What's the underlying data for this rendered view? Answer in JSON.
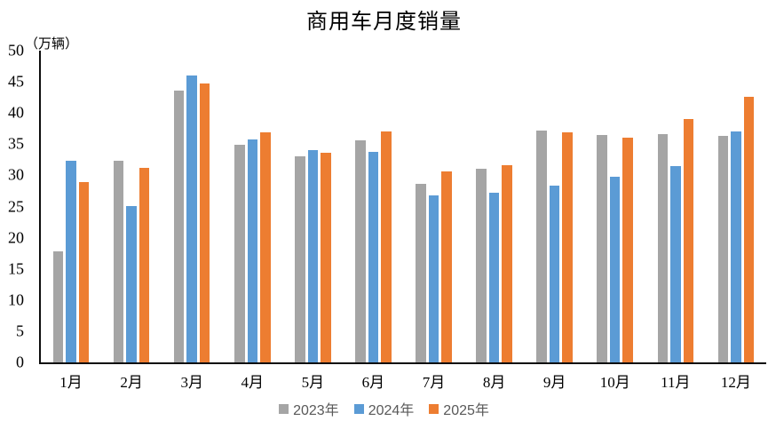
{
  "chart_data": {
    "type": "bar",
    "title": "商用车月度销量",
    "ylabel": "（万辆）",
    "xlabel": "",
    "categories": [
      "1月",
      "2月",
      "3月",
      "4月",
      "5月",
      "6月",
      "7月",
      "8月",
      "9月",
      "10月",
      "11月",
      "12月"
    ],
    "series": [
      {
        "name": "2023年",
        "color": "#A5A5A5",
        "values": [
          17.8,
          32.4,
          43.6,
          34.9,
          33.0,
          35.6,
          28.6,
          31.0,
          37.2,
          36.5,
          36.6,
          36.3
        ]
      },
      {
        "name": "2024年",
        "color": "#5B9BD5",
        "values": [
          32.3,
          25.1,
          46.0,
          35.8,
          34.1,
          33.8,
          26.8,
          27.2,
          28.4,
          29.8,
          31.5,
          37.0
        ]
      },
      {
        "name": "2025年",
        "color": "#ED7D31",
        "values": [
          28.9,
          31.2,
          44.7,
          36.9,
          33.6,
          37.0,
          30.6,
          31.6,
          36.9,
          36.1,
          39.1,
          42.6
        ]
      }
    ],
    "ylim": [
      0,
      50
    ],
    "ytick_step": 5,
    "grid": false,
    "legend_position": "bottom",
    "axis_color": "#0d0d0d",
    "legend_text_color": "#595959"
  }
}
